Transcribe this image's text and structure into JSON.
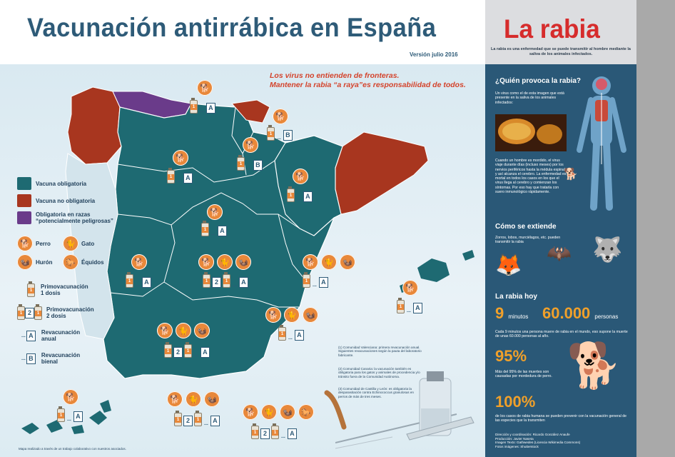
{
  "header": {
    "title": "Vacunación antirrábica en España",
    "version": "Versión julio 2016"
  },
  "slogan": {
    "line1": "Los virus no entienden de fronteras.",
    "line2": "Mantener la rabia “a raya”es responsabilidad de todos."
  },
  "colors": {
    "obligatoria": "#1e6a72",
    "no_obligatoria": "#a8361f",
    "razas": "#6a3b8a",
    "accent": "#e8883a",
    "panel": "#2a5877",
    "title_blue": "#2e5b78",
    "title_red": "#d62c2c"
  },
  "legend": {
    "obligatoria": "Vacuna obligatoria",
    "no_obligatoria": "Vacuna no obligatoria",
    "razas": "Obligatoria en razas “potencialmente peligrosas”",
    "perro": "Perro",
    "gato": "Gato",
    "huron": "Hurón",
    "equidos": "Équidos",
    "primo1": "Primovacunación 1 dosis",
    "primo2": "Primovacunación 2 dosis",
    "revac_anual": "Revacunación anual",
    "revac_bienal": "Revacunación bienal"
  },
  "codes": {
    "one": "1",
    "two": "2",
    "anual": "A",
    "bienal": "B",
    "dots": "..."
  },
  "notes": {
    "n1": "(1) Comunidad Valenciana: primera revacunación anual. Siguientes revacunaciones según la pauta del laboratorio fabricante.",
    "n2": "(2) Comunidad Canaria: la vacunación también es obligatoria para los gatos y animales de procedencia y/o tránsito fuera de la Comunidad Autónoma.",
    "n3": "(3) Comunidad de Castilla y León: es obligatoria la desparasitación contra Echinococcus granulosus en perros de más de tres meses.",
    "footer": "Mapa realizado a través de un trabajo colaborativo con nuestros asociados."
  },
  "right": {
    "title": "La rabia",
    "subtitle": "La rabia es una enfermedad que se puede transmitir al hombre mediante la saliva de los animales infectados.",
    "q1": "¿Quién provoca la rabia?",
    "q1_text": "Un virus como el de esta imagen que está presente en la saliva de los animales infectados:",
    "q1_text2": "Cuando un hombre es mordido, el virus viaje durante días (incluso meses) por los nervios periféricos hasta la médula espinal y así alcanza el cerebro. La enfermedad es mortal en todos los casos en los que el virus llega al cerebro y comienzan los síntomas. Por eso hay que tratarla con suero inmunológico rápidamente.",
    "q2": "Cómo se extiende",
    "q2_text": "Zorros, lobos, murciélagos, etc. pueden transmitir la rabia",
    "hoy": "La rabia hoy",
    "minutes_num": "9",
    "minutes_unit": "minutos",
    "people_num": "60.000",
    "people_unit": "personas",
    "stat1_text": "Cada 9 minutos una persona muere de rabia en el mundo, eso supone la muerte de unas 60.000 personas al año.",
    "pct95": "95%",
    "pct95_text": "Más del 95% de las muertes son causadas por mordedura de perro.",
    "pct100": "100%",
    "pct100_text": "de los casos de rabia humana se pueden prevenir con la vacunación general de las especies que la transmiten",
    "credits1": "Dirección y coordinación: Ricardo González Anaufe",
    "credits2": "Producción: Javier Naseta",
    "credits3": "Imagen Texto: Gathwedes (Licencia Wikimedia Commons)",
    "credits4": "Fotos imágenes: Shutterstock"
  }
}
